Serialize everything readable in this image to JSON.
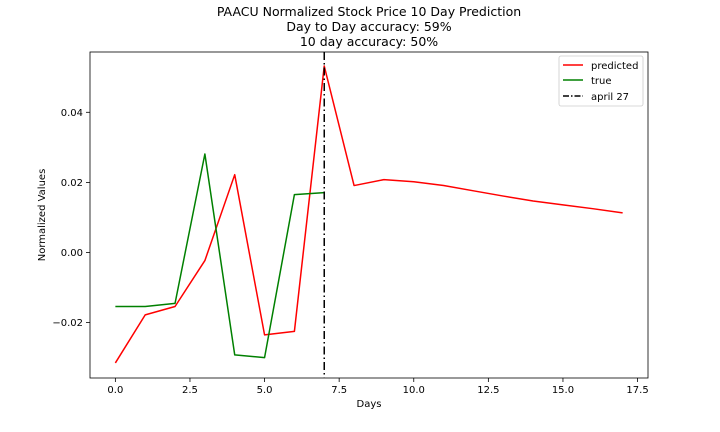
{
  "chart_data": {
    "type": "line",
    "title_lines": [
      "PAACU Normalized Stock Price 10 Day Prediction",
      "Day to Day accuracy: 59%",
      "10 day accuracy: 50%"
    ],
    "xlabel": "Days",
    "ylabel": "Normalized Values",
    "xlim": [
      -0.85,
      17.85
    ],
    "ylim": [
      -0.0358,
      0.0572
    ],
    "xticks": [
      0.0,
      2.5,
      5.0,
      7.5,
      10.0,
      12.5,
      15.0,
      17.5
    ],
    "xtick_labels": [
      "0.0",
      "2.5",
      "5.0",
      "7.5",
      "10.0",
      "12.5",
      "15.0",
      "17.5"
    ],
    "yticks": [
      -0.02,
      0.0,
      0.02,
      0.04
    ],
    "ytick_labels": [
      "−0.02",
      "0.00",
      "0.02",
      "0.04"
    ],
    "grid": false,
    "legend_position": "top-right",
    "series": [
      {
        "name": "predicted",
        "color": "#ff0000",
        "style": "solid",
        "x": [
          0,
          1,
          2,
          3,
          4,
          5,
          6,
          7,
          8,
          9,
          10,
          11,
          12,
          13,
          14,
          15,
          16,
          17
        ],
        "y": [
          -0.0315,
          -0.0178,
          -0.0154,
          -0.0023,
          0.0222,
          -0.0235,
          -0.0225,
          0.0532,
          0.0191,
          0.0208,
          0.0202,
          0.0191,
          0.0176,
          0.0161,
          0.0147,
          0.0136,
          0.0125,
          0.0113
        ]
      },
      {
        "name": "true",
        "color": "#008000",
        "style": "solid",
        "x": [
          0,
          1,
          2,
          3,
          4,
          5,
          6,
          7
        ],
        "y": [
          -0.0154,
          -0.0154,
          -0.0145,
          0.0281,
          -0.0292,
          -0.03,
          0.0165,
          0.0171
        ]
      }
    ],
    "annotations": [
      {
        "name": "april 27",
        "type": "vline",
        "x": 7,
        "color": "#000000",
        "style": "dashdot"
      }
    ]
  }
}
